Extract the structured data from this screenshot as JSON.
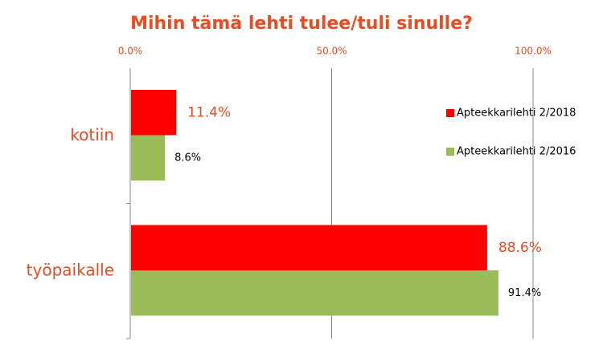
{
  "chart_data": {
    "type": "bar",
    "orientation": "horizontal",
    "title": "Mihin tämä lehti tulee/tuli sinulle?",
    "categories": [
      "kotiin",
      "työpaikalle"
    ],
    "series": [
      {
        "name": "Apteekkarilehti 2/2018",
        "color": "#ff0000",
        "values": [
          11.4,
          88.6
        ],
        "value_labels": [
          "11.4%",
          "88.6%"
        ]
      },
      {
        "name": "Apteekkarilehti 2/2016",
        "color": "#9bbb59",
        "values": [
          8.6,
          91.4
        ],
        "value_labels": [
          "8.6%",
          "91.4%"
        ]
      }
    ],
    "xlim": [
      0,
      100
    ],
    "xticks": [
      {
        "value": 0,
        "label": "0.0%"
      },
      {
        "value": 50,
        "label": "50.0%"
      },
      {
        "value": 100,
        "label": "100.0%"
      }
    ],
    "grid": true,
    "legend": "right"
  }
}
